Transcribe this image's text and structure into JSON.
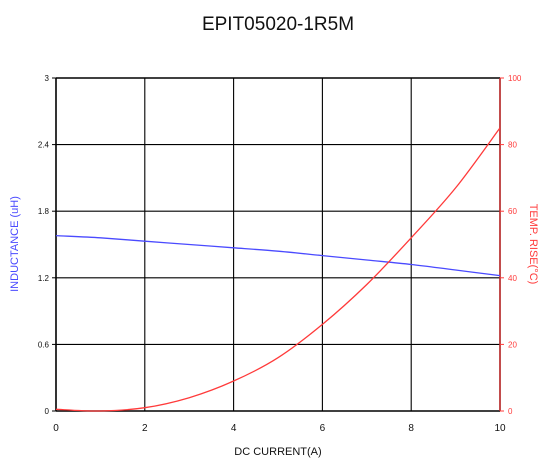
{
  "chart_data": {
    "type": "line",
    "title": "EPIT05020-1R5M",
    "xlabel": "DC CURRENT(A)",
    "ylabel_left": "INDUCTANCE (uH)",
    "ylabel_right": "TEMP. RISE(°C)",
    "xlim": [
      0,
      10
    ],
    "ylim_left": [
      0,
      3
    ],
    "ylim_right": [
      0,
      100
    ],
    "x_ticks": [
      "0",
      "2",
      "4",
      "6",
      "8",
      "10"
    ],
    "y_left_ticks": [
      "0",
      "0.6",
      "1.2",
      "1.8",
      "2.4",
      "3"
    ],
    "y_right_ticks": [
      "0",
      "20",
      "40",
      "60",
      "80",
      "100"
    ],
    "grid": true,
    "colors": {
      "inductance": "#4a4aff",
      "temp_rise": "#ff3a3a",
      "grid": "#000000"
    },
    "series": [
      {
        "axis": "left",
        "color": "#4a4aff",
        "x": [
          0,
          1,
          2,
          3,
          4,
          5,
          6,
          7,
          8,
          9,
          10
        ],
        "values": [
          1.58,
          1.56,
          1.53,
          1.5,
          1.47,
          1.44,
          1.4,
          1.36,
          1.32,
          1.27,
          1.22
        ]
      },
      {
        "axis": "right",
        "color": "#ff3a3a",
        "x": [
          0,
          1,
          2,
          3,
          4,
          5,
          6,
          7,
          8,
          9,
          10
        ],
        "values": [
          0.5,
          0,
          1,
          4,
          9,
          16,
          26,
          38,
          52,
          67,
          85
        ]
      }
    ]
  }
}
